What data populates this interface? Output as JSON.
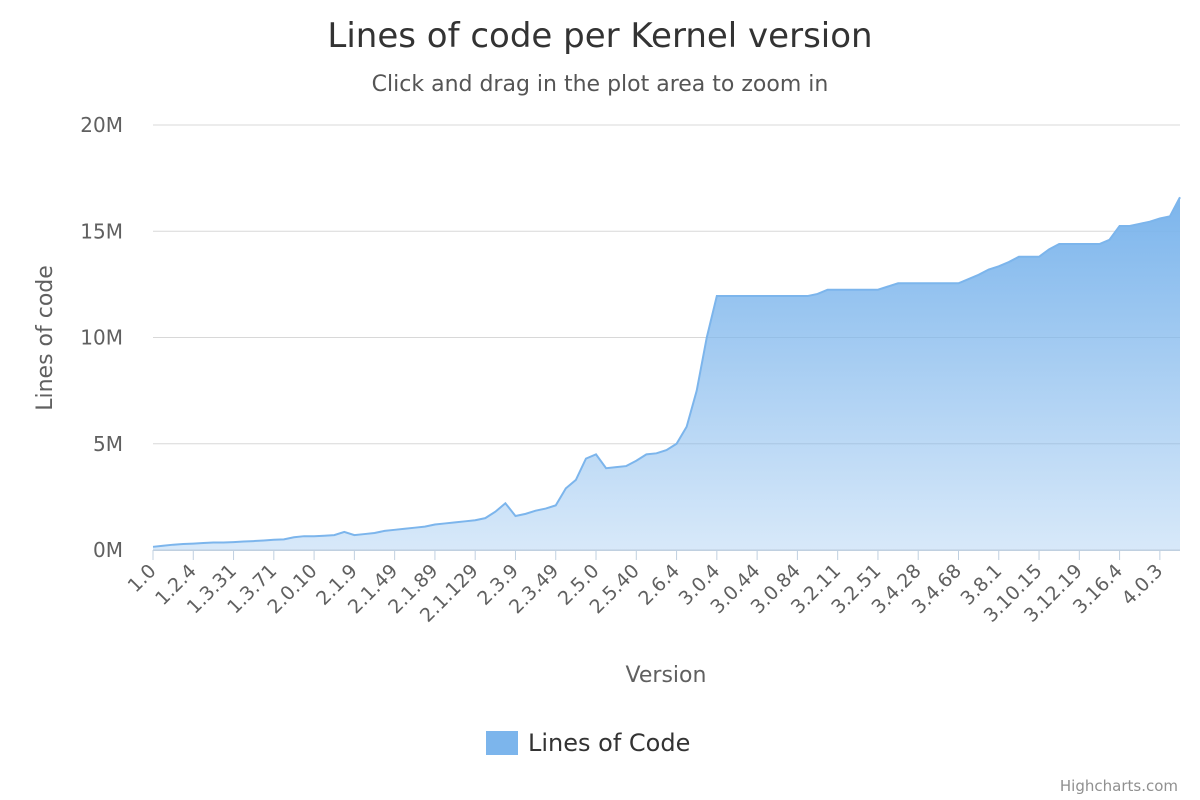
{
  "chart_data": {
    "type": "area",
    "title": "Lines of code per Kernel version",
    "subtitle": "Click and drag in the plot area to zoom in",
    "x_label": "Version",
    "y_label": "Lines of code",
    "categories": [
      "1.0",
      null,
      null,
      null,
      "1.2.4",
      null,
      null,
      null,
      "1.3.31",
      null,
      null,
      null,
      "1.3.71",
      null,
      null,
      null,
      "2.0.10",
      null,
      null,
      null,
      "2.1.9",
      null,
      null,
      null,
      "2.1.49",
      null,
      null,
      null,
      "2.1.89",
      null,
      null,
      null,
      "2.1.129",
      null,
      null,
      null,
      "2.3.9",
      null,
      null,
      null,
      "2.3.49",
      null,
      null,
      null,
      "2.5.0",
      null,
      null,
      null,
      "2.5.40",
      null,
      null,
      null,
      "2.6.4",
      null,
      null,
      null,
      "3.0.4",
      null,
      null,
      null,
      "3.0.44",
      null,
      null,
      null,
      "3.0.84",
      null,
      null,
      null,
      "3.2.11",
      null,
      null,
      null,
      "3.2.51",
      null,
      null,
      null,
      "3.4.28",
      null,
      null,
      null,
      "3.4.68",
      null,
      null,
      null,
      "3.8.1",
      null,
      null,
      null,
      "3.10.15",
      null,
      null,
      null,
      "3.12.19",
      null,
      null,
      null,
      "3.16.4",
      null,
      null,
      null,
      "4.0.3",
      null,
      null
    ],
    "series": [
      {
        "name": "Lines of Code",
        "color": "#7cb5ec",
        "values": [
          150000,
          200000,
          250000,
          280000,
          300000,
          330000,
          350000,
          350000,
          370000,
          400000,
          420000,
          450000,
          480000,
          500000,
          600000,
          650000,
          650000,
          670000,
          700000,
          850000,
          700000,
          750000,
          800000,
          900000,
          950000,
          1000000,
          1050000,
          1100000,
          1200000,
          1250000,
          1300000,
          1350000,
          1400000,
          1500000,
          1800000,
          2200000,
          1600000,
          1700000,
          1850000,
          1950000,
          2100000,
          2900000,
          3300000,
          4300000,
          4500000,
          3850000,
          3900000,
          3950000,
          4200000,
          4500000,
          4550000,
          4700000,
          5000000,
          5800000,
          7500000,
          10000000,
          11950000,
          11950000,
          11950000,
          11950000,
          11950000,
          11950000,
          11950000,
          11950000,
          11950000,
          11950000,
          12050000,
          12250000,
          12250000,
          12250000,
          12250000,
          12250000,
          12250000,
          12400000,
          12550000,
          12550000,
          12550000,
          12550000,
          12550000,
          12550000,
          12550000,
          12750000,
          12950000,
          13200000,
          13350000,
          13550000,
          13800000,
          13800000,
          13800000,
          14150000,
          14400000,
          14400000,
          14400000,
          14400000,
          14400000,
          14600000,
          15250000,
          15250000,
          15350000,
          15450000,
          15600000,
          15700000,
          16600000
        ]
      }
    ],
    "ylim": [
      0,
      20000000
    ],
    "yticks": [
      {
        "value": 0,
        "label": "0M"
      },
      {
        "value": 5000000,
        "label": "5M"
      },
      {
        "value": 10000000,
        "label": "10M"
      },
      {
        "value": 15000000,
        "label": "15M"
      },
      {
        "value": 20000000,
        "label": "20M"
      }
    ],
    "grid": true,
    "legend": "bottom",
    "credits": "Highcharts.com"
  }
}
